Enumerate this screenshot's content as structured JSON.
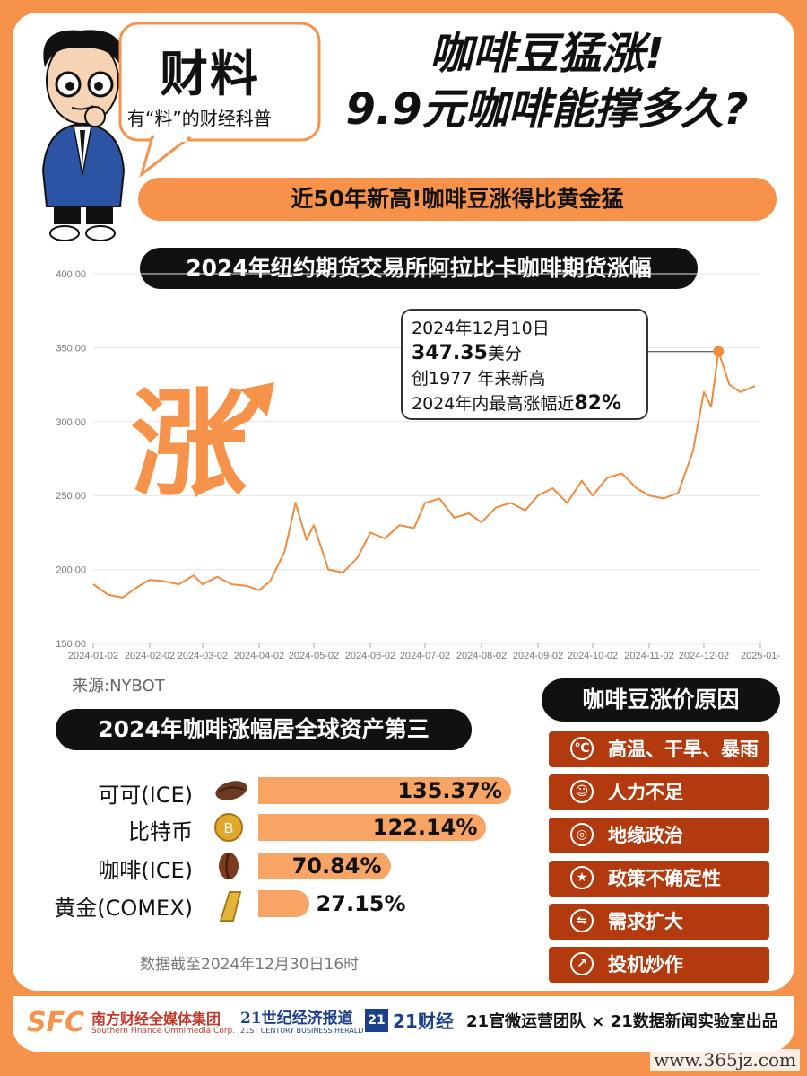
{
  "brand": {
    "title": "财料",
    "subtitle": "有“料”的财经科普"
  },
  "headline": {
    "line1": "咖啡豆猛涨!",
    "line2": "9.9元咖啡能撑多久?"
  },
  "banner": "近50年新高!咖啡豆涨得比黄金猛",
  "chart_title": "2024年纽约期货交易所阿拉比卡咖啡期货涨幅",
  "decor_char": "涨",
  "annotation": {
    "date": "2024年12月10日",
    "price": "347.35",
    "price_unit": "美分",
    "line3": "创1977 年来新高",
    "line4_prefix": "2024年内最高涨幅近",
    "line4_value": "82%"
  },
  "source": "来源:NYBOT",
  "chart_data": [
    {
      "type": "line",
      "title": "2024年纽约期货交易所阿拉比卡咖啡期货涨幅",
      "xlabel": "",
      "ylabel": "",
      "ylim": [
        150,
        400
      ],
      "yticks": [
        "150.00",
        "200.00",
        "250.00",
        "300.00",
        "350.00",
        "400.00"
      ],
      "xticks": [
        "2024-01-02",
        "2024-02-02",
        "2024-03-02",
        "2024-04-02",
        "2024-05-02",
        "2024-06-02",
        "2024-07-02",
        "2024-08-02",
        "2024-09-02",
        "2024-10-02",
        "2024-11-02",
        "2024-12-02",
        "2025-01-"
      ],
      "grid": true,
      "line_color": "#f08a3c",
      "x": [
        "2024-01-02",
        "2024-01-10",
        "2024-01-18",
        "2024-01-26",
        "2024-02-02",
        "2024-02-10",
        "2024-02-18",
        "2024-02-26",
        "2024-03-02",
        "2024-03-10",
        "2024-03-18",
        "2024-03-26",
        "2024-04-02",
        "2024-04-08",
        "2024-04-16",
        "2024-04-22",
        "2024-04-28",
        "2024-05-02",
        "2024-05-10",
        "2024-05-18",
        "2024-05-26",
        "2024-06-02",
        "2024-06-10",
        "2024-06-18",
        "2024-06-26",
        "2024-07-02",
        "2024-07-10",
        "2024-07-18",
        "2024-07-26",
        "2024-08-02",
        "2024-08-10",
        "2024-08-18",
        "2024-08-26",
        "2024-09-02",
        "2024-09-10",
        "2024-09-18",
        "2024-09-26",
        "2024-10-02",
        "2024-10-10",
        "2024-10-18",
        "2024-10-26",
        "2024-11-02",
        "2024-11-10",
        "2024-11-18",
        "2024-11-26",
        "2024-12-02",
        "2024-12-06",
        "2024-12-10",
        "2024-12-16",
        "2024-12-22",
        "2024-12-30"
      ],
      "values": [
        190,
        183,
        181,
        188,
        193,
        192,
        190,
        196,
        190,
        195,
        190,
        189,
        186,
        192,
        212,
        245,
        220,
        230,
        200,
        198,
        208,
        225,
        221,
        230,
        228,
        245,
        248,
        235,
        238,
        232,
        242,
        245,
        240,
        250,
        255,
        245,
        260,
        250,
        262,
        265,
        255,
        250,
        248,
        252,
        280,
        320,
        310,
        347.35,
        325,
        320,
        324
      ]
    },
    {
      "type": "bar",
      "title": "2024年咖啡涨幅居全球资产第三",
      "categories": [
        "可可(ICE)",
        "比特币",
        "咖啡(ICE)",
        "黄金(COMEX)"
      ],
      "values": [
        135.37,
        122.14,
        70.84,
        27.15
      ],
      "labels": [
        "135.37%",
        "122.14%",
        "70.84%",
        "27.15%"
      ],
      "bar_color": "#f7a465"
    }
  ],
  "assets_title": "2024年咖啡涨幅居全球资产第三",
  "footnote": "数据截至2024年12月30日16时",
  "reasons": {
    "title": "咖啡豆涨价原因",
    "items": [
      {
        "label": "高温、干旱、暴雨",
        "icon": "thermometer-icon"
      },
      {
        "label": "人力不足",
        "icon": "people-icon"
      },
      {
        "label": "地缘政治",
        "icon": "globe-icon"
      },
      {
        "label": "政策不确定性",
        "icon": "document-icon"
      },
      {
        "label": "需求扩大",
        "icon": "exchange-icon"
      },
      {
        "label": "投机炒作",
        "icon": "trend-icon"
      }
    ],
    "color": "#b33a0f"
  },
  "footer": {
    "sfc_logo": "SFC",
    "sfc_name": "南方财经全媒体集团",
    "sfc_en": "Southern Finance Omnimedia Corp.",
    "herald_name": "21世纪经济报道",
    "herald_en": "21ST CENTURY BUSINESS HERALD",
    "caijing_badge": "21",
    "caijing_name": "21财经",
    "credit": "21官微运营团队 × 21数据新闻实验室出品"
  },
  "watermark": "www.365jz.com",
  "colors": {
    "accent": "#f7924a",
    "dark": "#111111",
    "reason_red": "#b33a0f"
  }
}
